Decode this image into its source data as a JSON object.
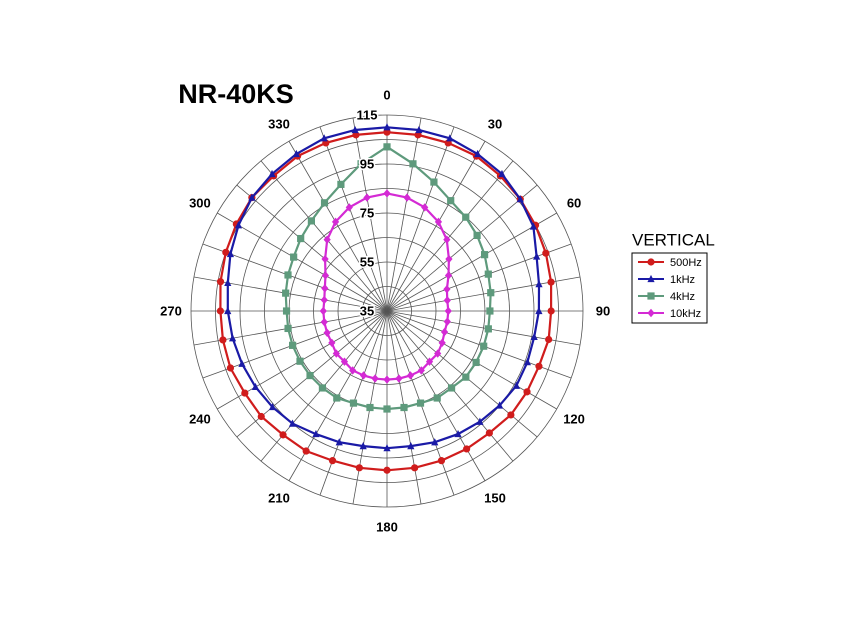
{
  "chart_data": {
    "type": "polar",
    "title": "NR-40KS",
    "legend_title": "VERTICAL",
    "theta": [
      0,
      10,
      20,
      30,
      40,
      50,
      60,
      70,
      80,
      90,
      100,
      110,
      120,
      130,
      140,
      150,
      160,
      170,
      180,
      190,
      200,
      210,
      220,
      230,
      240,
      250,
      260,
      270,
      280,
      290,
      300,
      310,
      320,
      330,
      340,
      350
    ],
    "rlim": [
      35,
      115
    ],
    "rticks": [
      35,
      55,
      75,
      95,
      115
    ],
    "rgrid": [
      45,
      55,
      65,
      75,
      85,
      95,
      105,
      115
    ],
    "thetaticks": [
      0,
      30,
      60,
      90,
      120,
      150,
      180,
      210,
      240,
      270,
      300,
      330
    ],
    "series": [
      {
        "name": "500Hz",
        "color": "#d01c1c",
        "marker": "circle",
        "values": [
          108,
          108,
          108,
          108,
          107,
          106,
          105,
          104,
          103,
          102,
          102,
          101,
          101,
          101,
          100,
          100,
          100,
          100,
          100,
          100,
          100,
          101,
          101,
          102,
          102,
          103,
          103,
          103,
          104,
          105,
          106,
          107,
          107,
          108,
          108,
          108
        ]
      },
      {
        "name": "1kHz",
        "color": "#1a1aa6",
        "marker": "triangle",
        "values": [
          110,
          110,
          110,
          109,
          108,
          106,
          104,
          100,
          98,
          97,
          96,
          96,
          96,
          95,
          94,
          93,
          92,
          91,
          91,
          91,
          92,
          93,
          95,
          96,
          97,
          98,
          99,
          100,
          101,
          103,
          105,
          107,
          108,
          109,
          110,
          110
        ]
      },
      {
        "name": "4kHz",
        "color": "#5e9a7c",
        "marker": "square",
        "values": [
          102,
          96,
          91,
          87,
          85,
          83,
          81,
          79,
          78,
          77,
          77,
          77,
          77,
          77,
          76,
          76,
          75,
          75,
          75,
          75,
          75,
          76,
          76,
          76,
          76,
          76,
          76,
          76,
          77,
          78,
          79,
          81,
          83,
          86,
          90,
          96
        ]
      },
      {
        "name": "10kHz",
        "color": "#d42ad4",
        "marker": "diamond",
        "values": [
          83,
          82,
          80,
          77,
          73,
          68,
          64,
          61,
          60,
          60,
          60,
          60,
          61,
          62,
          62,
          63,
          63,
          63,
          63,
          63,
          63,
          63,
          62,
          62,
          61,
          61,
          61,
          61,
          61,
          62,
          64,
          68,
          73,
          77,
          80,
          82
        ]
      }
    ]
  }
}
